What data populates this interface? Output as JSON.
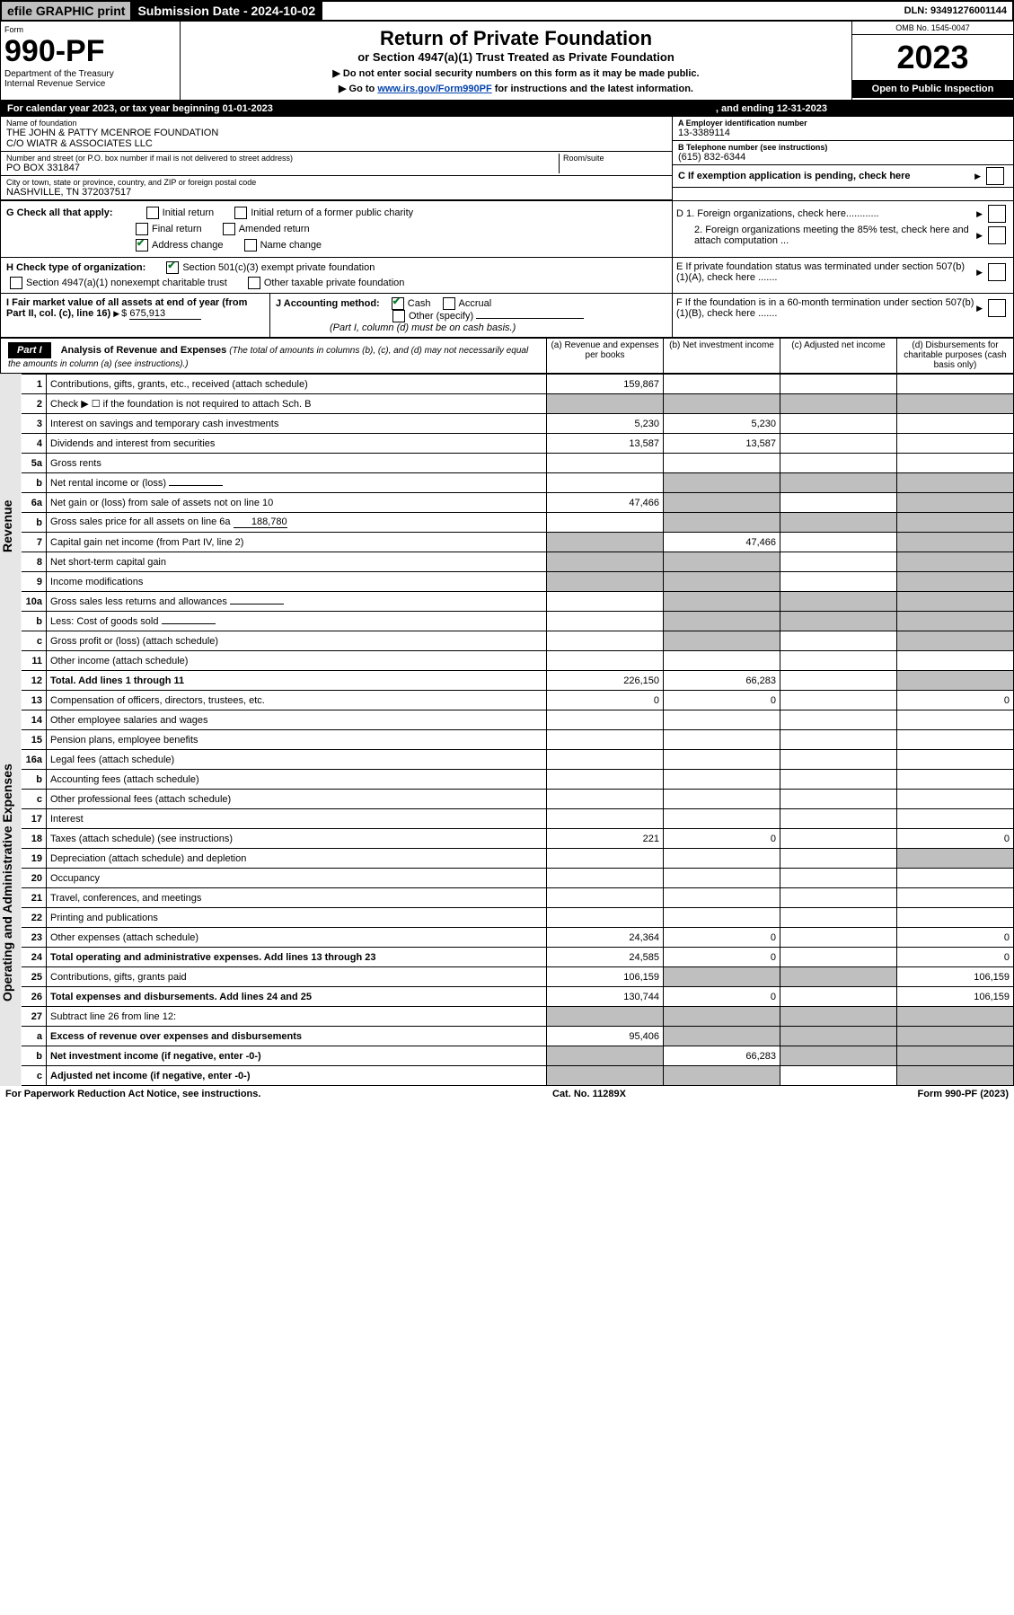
{
  "topbar": {
    "efile": "efile GRAPHIC print",
    "submission": "Submission Date - 2024-10-02",
    "dln": "DLN: 93491276001144"
  },
  "header": {
    "form_label": "Form",
    "form_no": "990-PF",
    "dept": "Department of the Treasury",
    "irs": "Internal Revenue Service",
    "title": "Return of Private Foundation",
    "subtitle": "or Section 4947(a)(1) Trust Treated as Private Foundation",
    "note1": "▶ Do not enter social security numbers on this form as it may be made public.",
    "note2_pre": "▶ Go to ",
    "note2_link": "www.irs.gov/Form990PF",
    "note2_post": " for instructions and the latest information.",
    "omb": "OMB No. 1545-0047",
    "year": "2023",
    "open": "Open to Public Inspection"
  },
  "cal": {
    "text": "For calendar year 2023, or tax year beginning 01-01-2023",
    "end_label": ", and ending 12-31-2023"
  },
  "id": {
    "name_lbl": "Name of foundation",
    "name1": "THE JOHN & PATTY MCENROE FOUNDATION",
    "name2": "C/O WIATR & ASSOCIATES LLC",
    "addr_lbl": "Number and street (or P.O. box number if mail is not delivered to street address)",
    "room_lbl": "Room/suite",
    "addr": "PO BOX 331847",
    "city_lbl": "City or town, state or province, country, and ZIP or foreign postal code",
    "city": "NASHVILLE, TN  372037517",
    "a_lbl": "A Employer identification number",
    "a_val": "13-3389114",
    "b_lbl": "B Telephone number (see instructions)",
    "b_val": "(615) 832-6344",
    "c_lbl": "C If exemption application is pending, check here",
    "d1": "D 1. Foreign organizations, check here............",
    "d2": "2. Foreign organizations meeting the 85% test, check here and attach computation ...",
    "e": "E  If private foundation status was terminated under section 507(b)(1)(A), check here .......",
    "f": "F  If the foundation is in a 60-month termination under section 507(b)(1)(B), check here .......",
    "g_lbl": "G Check all that apply:",
    "g_opts": [
      "Initial return",
      "Initial return of a former public charity",
      "Final return",
      "Amended return",
      "Address change",
      "Name change"
    ],
    "h_lbl": "H Check type of organization:",
    "h_opts": [
      "Section 501(c)(3) exempt private foundation",
      "Section 4947(a)(1) nonexempt charitable trust",
      "Other taxable private foundation"
    ],
    "i_lbl": "I Fair market value of all assets at end of year (from Part II, col. (c), line 16)",
    "i_val": "675,913",
    "j_lbl": "J Accounting method:",
    "j_cash": "Cash",
    "j_acc": "Accrual",
    "j_other": "Other (specify)",
    "j_note": "(Part I, column (d) must be on cash basis.)"
  },
  "part1": {
    "label": "Part I",
    "title": "Analysis of Revenue and Expenses",
    "title_note": "(The total of amounts in columns (b), (c), and (d) may not necessarily equal the amounts in column (a) (see instructions).)",
    "cols": {
      "a": "(a) Revenue and expenses per books",
      "b": "(b) Net investment income",
      "c": "(c) Adjusted net income",
      "d": "(d) Disbursements for charitable purposes (cash basis only)"
    }
  },
  "sections": {
    "rev": "Revenue",
    "exp": "Operating and Administrative Expenses"
  },
  "rows": [
    {
      "n": "1",
      "t": "Contributions, gifts, grants, etc., received (attach schedule)",
      "a": "159,867",
      "b": "",
      "c": "",
      "d": "",
      "cg": "",
      "dg": ""
    },
    {
      "n": "2",
      "t": "Check ▶ ☐ if the foundation is not required to attach Sch. B",
      "a": "",
      "b": "",
      "c": "",
      "d": "",
      "ag": "g",
      "bg": "g",
      "cg": "g",
      "dg": "g"
    },
    {
      "n": "3",
      "t": "Interest on savings and temporary cash investments",
      "a": "5,230",
      "b": "5,230",
      "c": "",
      "d": ""
    },
    {
      "n": "4",
      "t": "Dividends and interest from securities",
      "a": "13,587",
      "b": "13,587",
      "c": "",
      "d": ""
    },
    {
      "n": "5a",
      "t": "Gross rents",
      "a": "",
      "b": "",
      "c": "",
      "d": ""
    },
    {
      "n": "b",
      "t": "Net rental income or (loss)",
      "a": "",
      "b": "",
      "c": "",
      "d": "",
      "bg": "g",
      "cg": "g",
      "dg": "g",
      "inline": true
    },
    {
      "n": "6a",
      "t": "Net gain or (loss) from sale of assets not on line 10",
      "a": "47,466",
      "b": "",
      "c": "",
      "d": "",
      "bg": "g",
      "dg": "g"
    },
    {
      "n": "b",
      "t": "Gross sales price for all assets on line 6a",
      "a": "",
      "b": "",
      "c": "",
      "d": "",
      "bg": "g",
      "cg": "g",
      "dg": "g",
      "inline": true,
      "ival": "188,780"
    },
    {
      "n": "7",
      "t": "Capital gain net income (from Part IV, line 2)",
      "a": "",
      "b": "47,466",
      "c": "",
      "d": "",
      "ag": "g",
      "dg": "g"
    },
    {
      "n": "8",
      "t": "Net short-term capital gain",
      "a": "",
      "b": "",
      "c": "",
      "d": "",
      "ag": "g",
      "bg": "g",
      "dg": "g"
    },
    {
      "n": "9",
      "t": "Income modifications",
      "a": "",
      "b": "",
      "c": "",
      "d": "",
      "ag": "g",
      "bg": "g",
      "dg": "g"
    },
    {
      "n": "10a",
      "t": "Gross sales less returns and allowances",
      "a": "",
      "b": "",
      "c": "",
      "d": "",
      "bg": "g",
      "cg": "g",
      "dg": "g",
      "inline": true
    },
    {
      "n": "b",
      "t": "Less: Cost of goods sold",
      "a": "",
      "b": "",
      "c": "",
      "d": "",
      "bg": "g",
      "cg": "g",
      "dg": "g",
      "inline": true
    },
    {
      "n": "c",
      "t": "Gross profit or (loss) (attach schedule)",
      "a": "",
      "b": "",
      "c": "",
      "d": "",
      "bg": "g",
      "dg": "g"
    },
    {
      "n": "11",
      "t": "Other income (attach schedule)",
      "a": "",
      "b": "",
      "c": "",
      "d": ""
    },
    {
      "n": "12",
      "t": "Total. Add lines 1 through 11",
      "a": "226,150",
      "b": "66,283",
      "c": "",
      "d": "",
      "bold": true,
      "dg": "g"
    },
    {
      "n": "13",
      "t": "Compensation of officers, directors, trustees, etc.",
      "a": "0",
      "b": "0",
      "c": "",
      "d": "0"
    },
    {
      "n": "14",
      "t": "Other employee salaries and wages",
      "a": "",
      "b": "",
      "c": "",
      "d": ""
    },
    {
      "n": "15",
      "t": "Pension plans, employee benefits",
      "a": "",
      "b": "",
      "c": "",
      "d": ""
    },
    {
      "n": "16a",
      "t": "Legal fees (attach schedule)",
      "a": "",
      "b": "",
      "c": "",
      "d": ""
    },
    {
      "n": "b",
      "t": "Accounting fees (attach schedule)",
      "a": "",
      "b": "",
      "c": "",
      "d": ""
    },
    {
      "n": "c",
      "t": "Other professional fees (attach schedule)",
      "a": "",
      "b": "",
      "c": "",
      "d": ""
    },
    {
      "n": "17",
      "t": "Interest",
      "a": "",
      "b": "",
      "c": "",
      "d": ""
    },
    {
      "n": "18",
      "t": "Taxes (attach schedule) (see instructions)",
      "a": "221",
      "b": "0",
      "c": "",
      "d": "0"
    },
    {
      "n": "19",
      "t": "Depreciation (attach schedule) and depletion",
      "a": "",
      "b": "",
      "c": "",
      "d": "",
      "dg": "g"
    },
    {
      "n": "20",
      "t": "Occupancy",
      "a": "",
      "b": "",
      "c": "",
      "d": ""
    },
    {
      "n": "21",
      "t": "Travel, conferences, and meetings",
      "a": "",
      "b": "",
      "c": "",
      "d": ""
    },
    {
      "n": "22",
      "t": "Printing and publications",
      "a": "",
      "b": "",
      "c": "",
      "d": ""
    },
    {
      "n": "23",
      "t": "Other expenses (attach schedule)",
      "a": "24,364",
      "b": "0",
      "c": "",
      "d": "0"
    },
    {
      "n": "24",
      "t": "Total operating and administrative expenses. Add lines 13 through 23",
      "a": "24,585",
      "b": "0",
      "c": "",
      "d": "0",
      "bold": true
    },
    {
      "n": "25",
      "t": "Contributions, gifts, grants paid",
      "a": "106,159",
      "b": "",
      "c": "",
      "d": "106,159",
      "bg": "g",
      "cg": "g"
    },
    {
      "n": "26",
      "t": "Total expenses and disbursements. Add lines 24 and 25",
      "a": "130,744",
      "b": "0",
      "c": "",
      "d": "106,159",
      "bold": true
    },
    {
      "n": "27",
      "t": "Subtract line 26 from line 12:",
      "a": "",
      "b": "",
      "c": "",
      "d": "",
      "ag": "g",
      "bg": "g",
      "cg": "g",
      "dg": "g"
    },
    {
      "n": "a",
      "t": "Excess of revenue over expenses and disbursements",
      "a": "95,406",
      "b": "",
      "c": "",
      "d": "",
      "bold": true,
      "bg": "g",
      "cg": "g",
      "dg": "g"
    },
    {
      "n": "b",
      "t": "Net investment income (if negative, enter -0-)",
      "a": "",
      "b": "66,283",
      "c": "",
      "d": "",
      "bold": true,
      "ag": "g",
      "cg": "g",
      "dg": "g"
    },
    {
      "n": "c",
      "t": "Adjusted net income (if negative, enter -0-)",
      "a": "",
      "b": "",
      "c": "",
      "d": "",
      "bold": true,
      "ag": "g",
      "bg": "g",
      "dg": "g"
    }
  ],
  "footer": {
    "left": "For Paperwork Reduction Act Notice, see instructions.",
    "mid": "Cat. No. 11289X",
    "right": "Form 990-PF (2023)"
  }
}
